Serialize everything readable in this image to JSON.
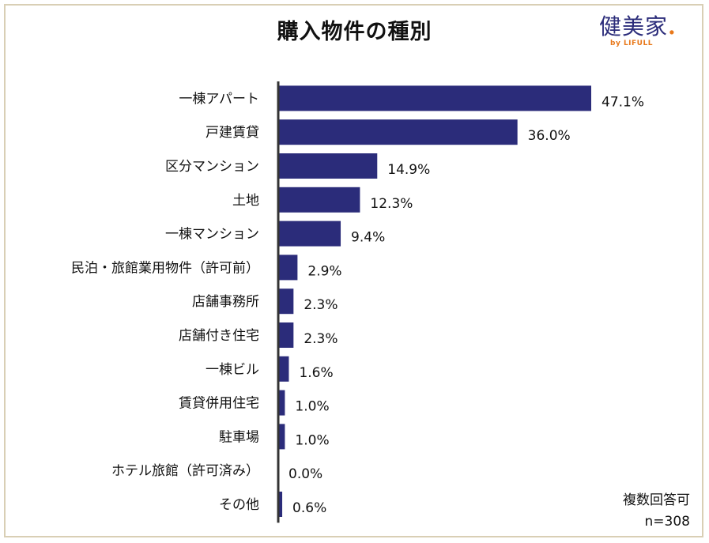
{
  "title": "購入物件の種別",
  "logo": {
    "main": "健美家",
    "dot": ".",
    "sub": "by LIFULL"
  },
  "note": {
    "line1": "複数回答可",
    "line2": "n=308"
  },
  "colors": {
    "bar": "#2b2c7a",
    "axis": "#333333",
    "frame": "#d9cfb5",
    "accent": "#e8781a"
  },
  "chart_data": {
    "type": "bar",
    "orientation": "horizontal",
    "title": "購入物件の種別",
    "categories": [
      "一棟アパート",
      "戸建賃貸",
      "区分マンション",
      "土地",
      "一棟マンション",
      "民泊・旅館業用物件（許可前）",
      "店舗事務所",
      "店舗付き住宅",
      "一棟ビル",
      "賃貸併用住宅",
      "駐車場",
      "ホテル旅館（許可済み）",
      "その他"
    ],
    "values": [
      47.1,
      36.0,
      14.9,
      12.3,
      9.4,
      2.9,
      2.3,
      2.3,
      1.6,
      1.0,
      1.0,
      0.0,
      0.6
    ],
    "value_labels": [
      "47.1%",
      "36.0%",
      "14.9%",
      "12.3%",
      "9.4%",
      "2.9%",
      "2.3%",
      "2.3%",
      "1.6%",
      "1.0%",
      "1.0%",
      "0.0%",
      "0.6%"
    ],
    "xlim": [
      0,
      50
    ],
    "unit": "%",
    "grid": false
  }
}
